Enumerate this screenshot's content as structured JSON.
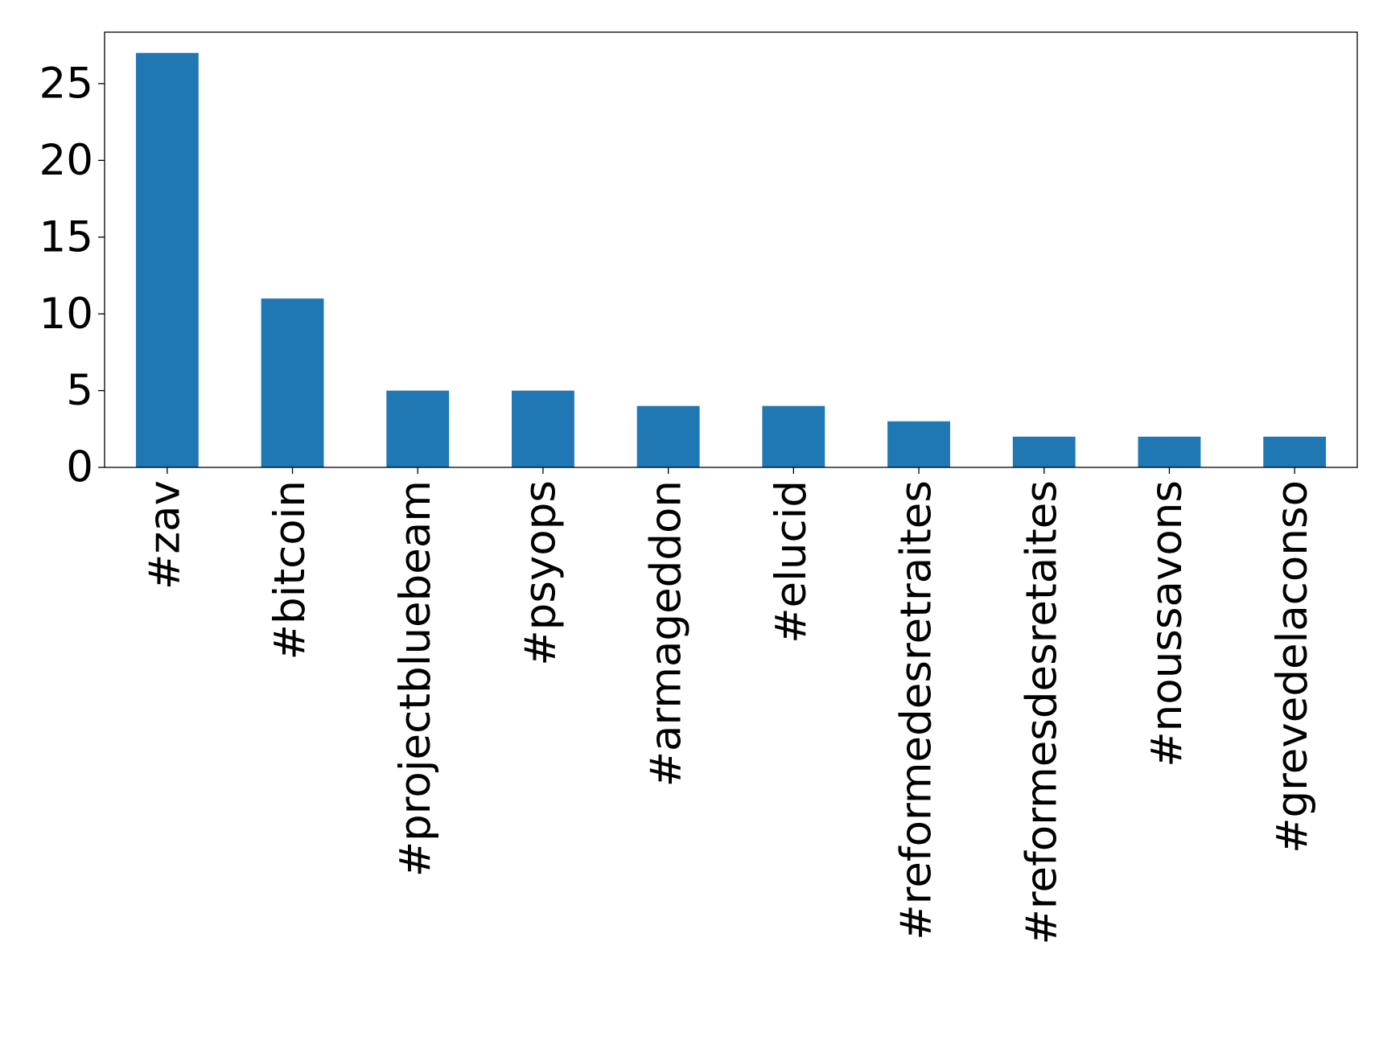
{
  "chart_data": {
    "type": "bar",
    "categories": [
      "#zav",
      "#bitcoin",
      "#projectbluebeam",
      "#psyops",
      "#armageddon",
      "#elucid",
      "#reformedesretraites",
      "#reformesdesretaites",
      "#noussavons",
      "#grevedelaconso"
    ],
    "values": [
      27,
      11,
      5,
      5,
      4,
      4,
      3,
      2,
      2,
      2
    ],
    "color": "#1f77b4",
    "ylim": [
      0,
      28.35
    ],
    "yticks": [
      0,
      5,
      10,
      15,
      20,
      25
    ],
    "grid": false
  }
}
